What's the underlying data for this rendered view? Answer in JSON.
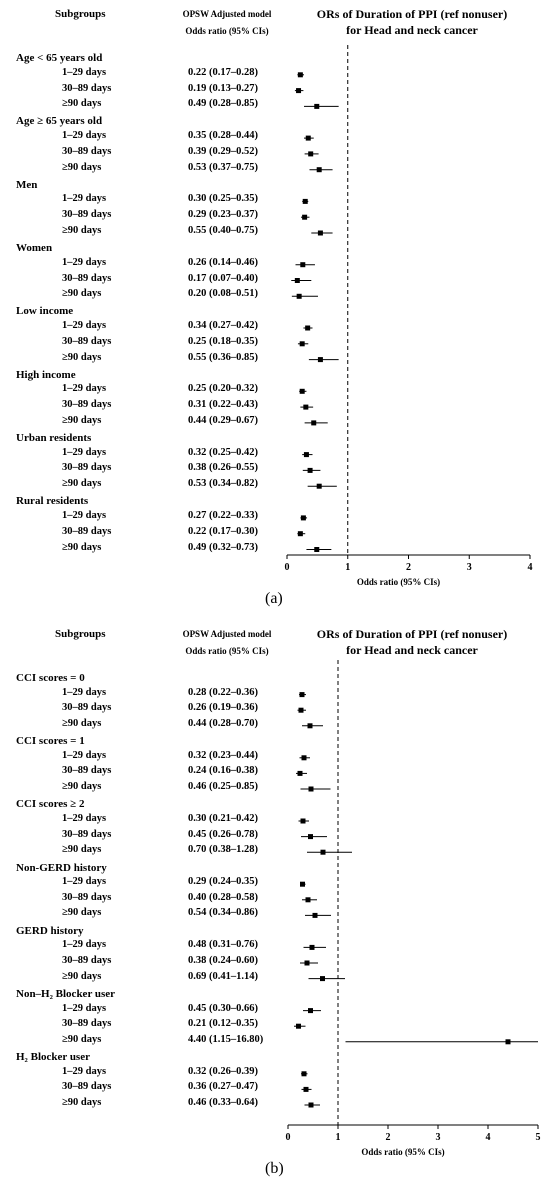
{
  "chart_data": [
    {
      "type": "forest",
      "panel_label": "(a)",
      "header": {
        "col1": "Subgroups",
        "col2_line1": "OPSW Adjusted model",
        "col2_line2": "Odds ratio (95% CIs)",
        "title_line1": "ORs of Duration of PPI (ref nonuser)",
        "title_line2": "for Head and neck cancer"
      },
      "xlabel": "Odds ratio (95% CIs)",
      "xlim": [
        0,
        4
      ],
      "xticks": [
        0,
        1,
        2,
        3,
        4
      ],
      "reference_line": 1,
      "groups": [
        {
          "name": "Age < 65 years old",
          "rows": [
            {
              "label": "1–29 days",
              "text": "0.22 (0.17–0.28)",
              "or": 0.22,
              "lo": 0.17,
              "hi": 0.28
            },
            {
              "label": "30–89 days",
              "text": "0.19 (0.13–0.27)",
              "or": 0.19,
              "lo": 0.13,
              "hi": 0.27
            },
            {
              "label": "≥90 days",
              "text": "0.49 (0.28–0.85)",
              "or": 0.49,
              "lo": 0.28,
              "hi": 0.85
            }
          ]
        },
        {
          "name": "Age ≥ 65 years old",
          "rows": [
            {
              "label": "1–29 days",
              "text": "0.35 (0.28–0.44)",
              "or": 0.35,
              "lo": 0.28,
              "hi": 0.44
            },
            {
              "label": "30–89 days",
              "text": "0.39 (0.29–0.52)",
              "or": 0.39,
              "lo": 0.29,
              "hi": 0.52
            },
            {
              "label": "≥90 days",
              "text": "0.53 (0.37–0.75)",
              "or": 0.53,
              "lo": 0.37,
              "hi": 0.75
            }
          ]
        },
        {
          "name": "Men",
          "rows": [
            {
              "label": "1–29 days",
              "text": "0.30 (0.25–0.35)",
              "or": 0.3,
              "lo": 0.25,
              "hi": 0.35
            },
            {
              "label": "30–89 days",
              "text": "0.29 (0.23–0.37)",
              "or": 0.29,
              "lo": 0.23,
              "hi": 0.37
            },
            {
              "label": "≥90 days",
              "text": "0.55 (0.40–0.75)",
              "or": 0.55,
              "lo": 0.4,
              "hi": 0.75
            }
          ]
        },
        {
          "name": "Women",
          "rows": [
            {
              "label": "1–29 days",
              "text": "0.26 (0.14–0.46)",
              "or": 0.26,
              "lo": 0.14,
              "hi": 0.46
            },
            {
              "label": "30–89 days",
              "text": "0.17 (0.07–0.40)",
              "or": 0.17,
              "lo": 0.07,
              "hi": 0.4
            },
            {
              "label": "≥90 days",
              "text": "0.20 (0.08–0.51)",
              "or": 0.2,
              "lo": 0.08,
              "hi": 0.51
            }
          ]
        },
        {
          "name": "Low income",
          "rows": [
            {
              "label": "1–29 days",
              "text": "0.34 (0.27–0.42)",
              "or": 0.34,
              "lo": 0.27,
              "hi": 0.42
            },
            {
              "label": "30–89 days",
              "text": "0.25 (0.18–0.35)",
              "or": 0.25,
              "lo": 0.18,
              "hi": 0.35
            },
            {
              "label": "≥90 days",
              "text": "0.55 (0.36–0.85)",
              "or": 0.55,
              "lo": 0.36,
              "hi": 0.85
            }
          ]
        },
        {
          "name": "High income",
          "rows": [
            {
              "label": "1–29 days",
              "text": "0.25 (0.20–0.32)",
              "or": 0.25,
              "lo": 0.2,
              "hi": 0.32
            },
            {
              "label": "30–89 days",
              "text": "0.31 (0.22–0.43)",
              "or": 0.31,
              "lo": 0.22,
              "hi": 0.43
            },
            {
              "label": "≥90 days",
              "text": "0.44 (0.29–0.67)",
              "or": 0.44,
              "lo": 0.29,
              "hi": 0.67
            }
          ]
        },
        {
          "name": "Urban residents",
          "rows": [
            {
              "label": "1–29 days",
              "text": "0.32 (0.25–0.42)",
              "or": 0.32,
              "lo": 0.25,
              "hi": 0.42
            },
            {
              "label": "30–89 days",
              "text": "0.38 (0.26–0.55)",
              "or": 0.38,
              "lo": 0.26,
              "hi": 0.55
            },
            {
              "label": "≥90 days",
              "text": "0.53 (0.34–0.82)",
              "or": 0.53,
              "lo": 0.34,
              "hi": 0.82
            }
          ]
        },
        {
          "name": "Rural residents",
          "rows": [
            {
              "label": "1–29 days",
              "text": "0.27 (0.22–0.33)",
              "or": 0.27,
              "lo": 0.22,
              "hi": 0.33
            },
            {
              "label": "30–89 days",
              "text": "0.22 (0.17–0.30)",
              "or": 0.22,
              "lo": 0.17,
              "hi": 0.3
            },
            {
              "label": "≥90 days",
              "text": "0.49 (0.32–0.73)",
              "or": 0.49,
              "lo": 0.32,
              "hi": 0.73
            }
          ]
        }
      ]
    },
    {
      "type": "forest",
      "panel_label": "(b)",
      "header": {
        "col1": "Subgroups",
        "col2_line1": "OPSW Adjusted model",
        "col2_line2": "Odds ratio (95% CIs)",
        "title_line1": "ORs of Duration of PPI (ref nonuser)",
        "title_line2": "for Head and neck cancer"
      },
      "xlabel": "Odds ratio (95% CIs)",
      "xlim": [
        0,
        5
      ],
      "xticks": [
        0,
        1,
        2,
        3,
        4,
        5
      ],
      "reference_line": 1,
      "groups": [
        {
          "name": "CCI scores = 0",
          "rows": [
            {
              "label": "1–29 days",
              "text": "0.28 (0.22–0.36)",
              "or": 0.28,
              "lo": 0.22,
              "hi": 0.36
            },
            {
              "label": "30–89 days",
              "text": "0.26 (0.19–0.36)",
              "or": 0.26,
              "lo": 0.19,
              "hi": 0.36
            },
            {
              "label": "≥90 days",
              "text": "0.44 (0.28–0.70)",
              "or": 0.44,
              "lo": 0.28,
              "hi": 0.7
            }
          ]
        },
        {
          "name": "CCI scores = 1",
          "rows": [
            {
              "label": "1–29 days",
              "text": "0.32 (0.23–0.44)",
              "or": 0.32,
              "lo": 0.23,
              "hi": 0.44
            },
            {
              "label": "30–89 days",
              "text": "0.24 (0.16–0.38)",
              "or": 0.24,
              "lo": 0.16,
              "hi": 0.38
            },
            {
              "label": "≥90 days",
              "text": "0.46 (0.25–0.85)",
              "or": 0.46,
              "lo": 0.25,
              "hi": 0.85
            }
          ]
        },
        {
          "name": "CCI scores ≥ 2",
          "rows": [
            {
              "label": "1–29 days",
              "text": "0.30 (0.21–0.42)",
              "or": 0.3,
              "lo": 0.21,
              "hi": 0.42
            },
            {
              "label": "30–89 days",
              "text": "0.45 (0.26–0.78)",
              "or": 0.45,
              "lo": 0.26,
              "hi": 0.78
            },
            {
              "label": "≥90 days",
              "text": "0.70 (0.38–1.28)",
              "or": 0.7,
              "lo": 0.38,
              "hi": 1.28
            }
          ]
        },
        {
          "name": "Non-GERD history",
          "rows": [
            {
              "label": "1–29 days",
              "text": "0.29 (0.24–0.35)",
              "or": 0.29,
              "lo": 0.24,
              "hi": 0.35
            },
            {
              "label": "30–89 days",
              "text": "0.40 (0.28–0.58)",
              "or": 0.4,
              "lo": 0.28,
              "hi": 0.58
            },
            {
              "label": "≥90 days",
              "text": "0.54 (0.34–0.86)",
              "or": 0.54,
              "lo": 0.34,
              "hi": 0.86
            }
          ]
        },
        {
          "name": "GERD history",
          "rows": [
            {
              "label": "1–29 days",
              "text": "0.48 (0.31–0.76)",
              "or": 0.48,
              "lo": 0.31,
              "hi": 0.76
            },
            {
              "label": "30–89 days",
              "text": "0.38 (0.24–0.60)",
              "or": 0.38,
              "lo": 0.24,
              "hi": 0.6
            },
            {
              "label": "≥90 days",
              "text": "0.69 (0.41–1.14)",
              "or": 0.69,
              "lo": 0.41,
              "hi": 1.14
            }
          ]
        },
        {
          "name": "Non–H₂ Blocker user",
          "rows": [
            {
              "label": "1–29 days",
              "text": "0.45 (0.30–0.66)",
              "or": 0.45,
              "lo": 0.3,
              "hi": 0.66
            },
            {
              "label": "30–89 days",
              "text": "0.21 (0.12–0.35)",
              "or": 0.21,
              "lo": 0.12,
              "hi": 0.35
            },
            {
              "label": "≥90 days",
              "text": "4.40 (1.15–16.80)",
              "or": 4.4,
              "lo": 1.15,
              "hi": 16.8
            }
          ]
        },
        {
          "name": "H₂ Blocker user",
          "rows": [
            {
              "label": "1–29 days",
              "text": "0.32 (0.26–0.39)",
              "or": 0.32,
              "lo": 0.26,
              "hi": 0.39
            },
            {
              "label": "30–89 days",
              "text": "0.36 (0.27–0.47)",
              "or": 0.36,
              "lo": 0.27,
              "hi": 0.47
            },
            {
              "label": "≥90 days",
              "text": "0.46 (0.33–0.64)",
              "or": 0.46,
              "lo": 0.33,
              "hi": 0.64
            }
          ]
        }
      ]
    }
  ]
}
